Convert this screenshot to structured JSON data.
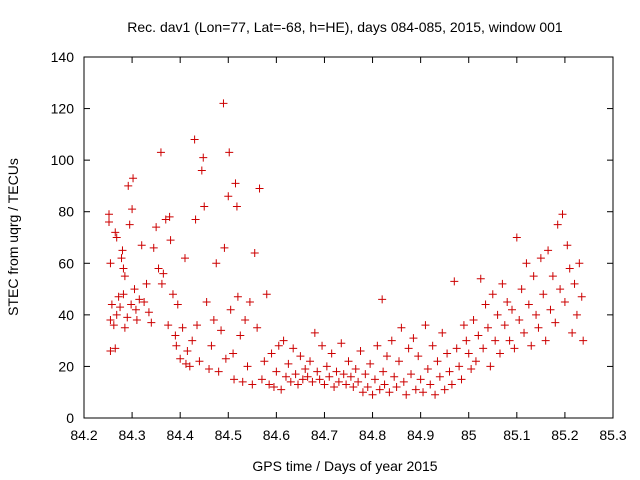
{
  "chart_data": {
    "type": "scatter",
    "title": "Rec. dav1 (Lon=77, Lat=-68, h=HE), days 084-085, 2015, window 001",
    "xlabel": "GPS time / Days of year 2015",
    "ylabel": "STEC from uqrg / TECUs",
    "xlim": [
      84.2,
      85.3
    ],
    "ylim": [
      0,
      140
    ],
    "x_ticks": [
      "84.2",
      "84.3",
      "84.4",
      "84.5",
      "84.6",
      "84.7",
      "84.8",
      "84.9",
      "85",
      "85.1",
      "85.2",
      "85.3"
    ],
    "y_ticks": [
      "0",
      "20",
      "40",
      "60",
      "80",
      "100",
      "120",
      "140"
    ],
    "grid": false,
    "legend": "none",
    "marker": "plus",
    "color": "#cc0000",
    "series": [
      {
        "points": [
          [
            84.252,
            79
          ],
          [
            84.252,
            76
          ],
          [
            84.255,
            60
          ],
          [
            84.258,
            44
          ],
          [
            84.255,
            38
          ],
          [
            84.262,
            36
          ],
          [
            84.268,
            40
          ],
          [
            84.265,
            27
          ],
          [
            84.255,
            26
          ],
          [
            84.265,
            72
          ],
          [
            84.268,
            70
          ],
          [
            84.272,
            47
          ],
          [
            84.275,
            43
          ],
          [
            84.278,
            62
          ],
          [
            84.28,
            65
          ],
          [
            84.282,
            58
          ],
          [
            84.285,
            55
          ],
          [
            84.282,
            48
          ],
          [
            84.285,
            35
          ],
          [
            84.29,
            39
          ],
          [
            84.292,
            90
          ],
          [
            84.295,
            75
          ],
          [
            84.298,
            44
          ],
          [
            84.3,
            81
          ],
          [
            84.302,
            93
          ],
          [
            84.305,
            50
          ],
          [
            84.308,
            42
          ],
          [
            84.31,
            38
          ],
          [
            84.315,
            46
          ],
          [
            84.32,
            67
          ],
          [
            84.325,
            45
          ],
          [
            84.33,
            52
          ],
          [
            84.335,
            41
          ],
          [
            84.34,
            37
          ],
          [
            84.345,
            66
          ],
          [
            84.35,
            74
          ],
          [
            84.355,
            58
          ],
          [
            84.36,
            103
          ],
          [
            84.362,
            52
          ],
          [
            84.365,
            56
          ],
          [
            84.37,
            77
          ],
          [
            84.375,
            36
          ],
          [
            84.378,
            78
          ],
          [
            84.38,
            69
          ],
          [
            84.385,
            48
          ],
          [
            84.39,
            32
          ],
          [
            84.392,
            28
          ],
          [
            84.395,
            44
          ],
          [
            84.4,
            23
          ],
          [
            84.405,
            35
          ],
          [
            84.41,
            62
          ],
          [
            84.412,
            21
          ],
          [
            84.415,
            26
          ],
          [
            84.42,
            20
          ],
          [
            84.425,
            30
          ],
          [
            84.43,
            108
          ],
          [
            84.432,
            77
          ],
          [
            84.435,
            36
          ],
          [
            84.44,
            22
          ],
          [
            84.445,
            96
          ],
          [
            84.448,
            101
          ],
          [
            84.45,
            82
          ],
          [
            84.455,
            45
          ],
          [
            84.46,
            19
          ],
          [
            84.465,
            28
          ],
          [
            84.47,
            38
          ],
          [
            84.475,
            60
          ],
          [
            84.48,
            18
          ],
          [
            84.485,
            34
          ],
          [
            84.49,
            122
          ],
          [
            84.492,
            66
          ],
          [
            84.495,
            23
          ],
          [
            84.5,
            86
          ],
          [
            84.502,
            103
          ],
          [
            84.505,
            42
          ],
          [
            84.51,
            25
          ],
          [
            84.512,
            15
          ],
          [
            84.515,
            91
          ],
          [
            84.518,
            82
          ],
          [
            84.52,
            47
          ],
          [
            84.525,
            32
          ],
          [
            84.53,
            14
          ],
          [
            84.535,
            38
          ],
          [
            84.54,
            20
          ],
          [
            84.545,
            45
          ],
          [
            84.55,
            13
          ],
          [
            84.555,
            64
          ],
          [
            84.56,
            35
          ],
          [
            84.565,
            89
          ],
          [
            84.57,
            15
          ],
          [
            84.575,
            22
          ],
          [
            84.58,
            48
          ],
          [
            84.585,
            13
          ],
          [
            84.59,
            25
          ],
          [
            84.595,
            12
          ],
          [
            84.6,
            18
          ],
          [
            84.605,
            28
          ],
          [
            84.61,
            11
          ],
          [
            84.615,
            30
          ],
          [
            84.62,
            16
          ],
          [
            84.625,
            21
          ],
          [
            84.63,
            14
          ],
          [
            84.635,
            27
          ],
          [
            84.64,
            17
          ],
          [
            84.645,
            13
          ],
          [
            84.65,
            24
          ],
          [
            84.655,
            15
          ],
          [
            84.66,
            19
          ],
          [
            84.665,
            16
          ],
          [
            84.67,
            22
          ],
          [
            84.675,
            14
          ],
          [
            84.68,
            33
          ],
          [
            84.685,
            18
          ],
          [
            84.69,
            15
          ],
          [
            84.695,
            28
          ],
          [
            84.7,
            13
          ],
          [
            84.705,
            20
          ],
          [
            84.71,
            16
          ],
          [
            84.715,
            25
          ],
          [
            84.72,
            12
          ],
          [
            84.725,
            18
          ],
          [
            84.73,
            14
          ],
          [
            84.735,
            29
          ],
          [
            84.74,
            17
          ],
          [
            84.745,
            13
          ],
          [
            84.75,
            22
          ],
          [
            84.755,
            16
          ],
          [
            84.76,
            12
          ],
          [
            84.765,
            19
          ],
          [
            84.77,
            14
          ],
          [
            84.775,
            26
          ],
          [
            84.78,
            10
          ],
          [
            84.785,
            17
          ],
          [
            84.79,
            12
          ],
          [
            84.795,
            21
          ],
          [
            84.8,
            9
          ],
          [
            84.805,
            15
          ],
          [
            84.81,
            28
          ],
          [
            84.815,
            11
          ],
          [
            84.82,
            46
          ],
          [
            84.822,
            18
          ],
          [
            84.825,
            13
          ],
          [
            84.83,
            24
          ],
          [
            84.835,
            10
          ],
          [
            84.84,
            30
          ],
          [
            84.845,
            16
          ],
          [
            84.85,
            12
          ],
          [
            84.855,
            22
          ],
          [
            84.86,
            35
          ],
          [
            84.865,
            14
          ],
          [
            84.87,
            9
          ],
          [
            84.875,
            27
          ],
          [
            84.88,
            17
          ],
          [
            84.885,
            31
          ],
          [
            84.89,
            11
          ],
          [
            84.895,
            24
          ],
          [
            84.9,
            15
          ],
          [
            84.905,
            10
          ],
          [
            84.91,
            36
          ],
          [
            84.915,
            19
          ],
          [
            84.92,
            13
          ],
          [
            84.925,
            28
          ],
          [
            84.93,
            9
          ],
          [
            84.935,
            22
          ],
          [
            84.94,
            16
          ],
          [
            84.945,
            33
          ],
          [
            84.95,
            11
          ],
          [
            84.955,
            25
          ],
          [
            84.96,
            18
          ],
          [
            84.965,
            13
          ],
          [
            84.97,
            53
          ],
          [
            84.975,
            27
          ],
          [
            84.98,
            20
          ],
          [
            84.985,
            15
          ],
          [
            84.99,
            36
          ],
          [
            84.995,
            30
          ],
          [
            85.0,
            25
          ],
          [
            85.005,
            19
          ],
          [
            85.01,
            38
          ],
          [
            85.015,
            22
          ],
          [
            85.02,
            32
          ],
          [
            85.025,
            54
          ],
          [
            85.03,
            27
          ],
          [
            85.035,
            44
          ],
          [
            85.04,
            35
          ],
          [
            85.045,
            20
          ],
          [
            85.05,
            48
          ],
          [
            85.055,
            30
          ],
          [
            85.06,
            40
          ],
          [
            85.065,
            25
          ],
          [
            85.07,
            52
          ],
          [
            85.075,
            36
          ],
          [
            85.08,
            45
          ],
          [
            85.085,
            30
          ],
          [
            85.09,
            42
          ],
          [
            85.095,
            27
          ],
          [
            85.1,
            70
          ],
          [
            85.105,
            38
          ],
          [
            85.11,
            50
          ],
          [
            85.115,
            33
          ],
          [
            85.12,
            60
          ],
          [
            85.125,
            44
          ],
          [
            85.13,
            28
          ],
          [
            85.135,
            55
          ],
          [
            85.14,
            40
          ],
          [
            85.145,
            35
          ],
          [
            85.15,
            62
          ],
          [
            85.155,
            48
          ],
          [
            85.16,
            30
          ],
          [
            85.165,
            65
          ],
          [
            85.17,
            42
          ],
          [
            85.175,
            55
          ],
          [
            85.18,
            37
          ],
          [
            85.185,
            75
          ],
          [
            85.19,
            50
          ],
          [
            85.195,
            79
          ],
          [
            85.2,
            45
          ],
          [
            85.205,
            67
          ],
          [
            85.21,
            58
          ],
          [
            85.215,
            33
          ],
          [
            85.22,
            52
          ],
          [
            85.225,
            40
          ],
          [
            85.23,
            60
          ],
          [
            85.235,
            47
          ],
          [
            85.238,
            30
          ]
        ]
      }
    ]
  }
}
